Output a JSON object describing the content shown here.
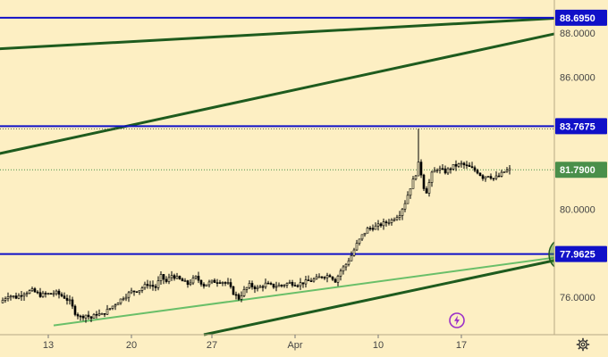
{
  "chart_data": {
    "type": "candlestick",
    "ylim": [
      74.3,
      89.5
    ],
    "y_ticks": [
      "88.0000",
      "86.0000",
      "80.0000",
      "76.0000"
    ],
    "x_ticks": [
      "13",
      "20",
      "27",
      "Apr",
      "10",
      "17"
    ],
    "candle_color": "#000000",
    "price_series": [
      [
        0,
        75.75
      ],
      [
        3,
        76.1
      ],
      [
        6,
        76.0
      ],
      [
        9,
        76.2
      ],
      [
        12,
        76.3
      ],
      [
        15,
        76.1
      ],
      [
        18,
        76.15
      ],
      [
        21,
        76.2
      ],
      [
        24,
        76.0
      ],
      [
        26,
        75.8
      ],
      [
        28,
        75.3
      ],
      [
        30,
        75.1
      ],
      [
        32,
        75.2
      ],
      [
        34,
        75.05
      ],
      [
        36,
        75.25
      ],
      [
        38,
        75.2
      ],
      [
        40,
        75.4
      ],
      [
        43,
        75.7
      ],
      [
        46,
        76.0
      ],
      [
        49,
        76.25
      ],
      [
        52,
        76.35
      ],
      [
        55,
        76.6
      ],
      [
        58,
        76.45
      ],
      [
        60,
        76.95
      ],
      [
        62,
        76.7
      ],
      [
        64,
        77.0
      ],
      [
        67,
        76.8
      ],
      [
        70,
        76.6
      ],
      [
        73,
        76.9
      ],
      [
        76,
        76.55
      ],
      [
        79,
        76.7
      ],
      [
        82,
        76.75
      ],
      [
        85,
        76.6
      ],
      [
        87,
        76.2
      ],
      [
        89,
        75.95
      ],
      [
        91,
        76.3
      ],
      [
        93,
        76.55
      ],
      [
        96,
        76.4
      ],
      [
        99,
        76.6
      ],
      [
        102,
        76.5
      ],
      [
        105,
        76.55
      ],
      [
        108,
        76.65
      ],
      [
        111,
        76.6
      ],
      [
        114,
        76.7
      ],
      [
        117,
        76.8
      ],
      [
        120,
        76.95
      ],
      [
        123,
        77.0
      ],
      [
        125,
        76.75
      ],
      [
        127,
        77.2
      ],
      [
        129,
        77.5
      ],
      [
        131,
        77.9
      ],
      [
        133,
        78.4
      ],
      [
        135,
        78.8
      ],
      [
        137,
        79.1
      ],
      [
        140,
        79.2
      ],
      [
        143,
        79.35
      ],
      [
        146,
        79.5
      ],
      [
        149,
        79.8
      ],
      [
        151,
        80.3
      ],
      [
        153,
        81.0
      ],
      [
        155,
        81.6
      ],
      [
        156,
        82.05
      ],
      [
        157,
        81.6
      ],
      [
        158,
        81.0
      ],
      [
        159,
        80.8
      ],
      [
        161,
        81.6
      ],
      [
        163,
        81.85
      ],
      [
        166,
        81.7
      ],
      [
        169,
        81.95
      ],
      [
        172,
        82.05
      ],
      [
        175,
        81.9
      ],
      [
        178,
        81.7
      ],
      [
        180,
        81.45
      ],
      [
        182,
        81.55
      ],
      [
        184,
        81.4
      ],
      [
        186,
        81.5
      ],
      [
        188,
        81.7
      ],
      [
        190,
        81.79
      ]
    ],
    "horizontal_levels": [
      {
        "value": 88.695,
        "label": "88.6950"
      },
      {
        "value": 83.7675,
        "label": "83.7675"
      },
      {
        "value": 77.9625,
        "label": "77.9625"
      }
    ],
    "last_price": {
      "value": 81.79,
      "label": "81.7900"
    },
    "spike_high": 83.65,
    "trendlines": [
      {
        "name": "upper",
        "color": "#1e5b1e",
        "from": [
          -5,
          87.25
        ],
        "to": [
          231,
          88.83
        ]
      },
      {
        "name": "middle",
        "color": "#1e5b1e",
        "from": [
          -5,
          82.4
        ],
        "to": [
          231,
          88.6
        ]
      },
      {
        "name": "lower-light",
        "color": "#6abf69",
        "from": [
          20,
          74.72
        ],
        "to": [
          231,
          78.2
        ]
      },
      {
        "name": "lower-dark",
        "color": "#1e5b1e",
        "from": [
          76,
          74.3
        ],
        "to": [
          231,
          78.3
        ]
      }
    ],
    "circle_marker": {
      "x": 211,
      "y": 77.95,
      "color": "#3a8a30"
    },
    "colors": {
      "background": "#fdefc3",
      "horizontal_line": "#1010c8",
      "level_badge": "#1010c8",
      "price_badge": "#4a8f4a",
      "bolt_icon": "#9b2fc8"
    }
  },
  "icons": {
    "settings": "gear-icon",
    "events": "lightning-icon"
  }
}
